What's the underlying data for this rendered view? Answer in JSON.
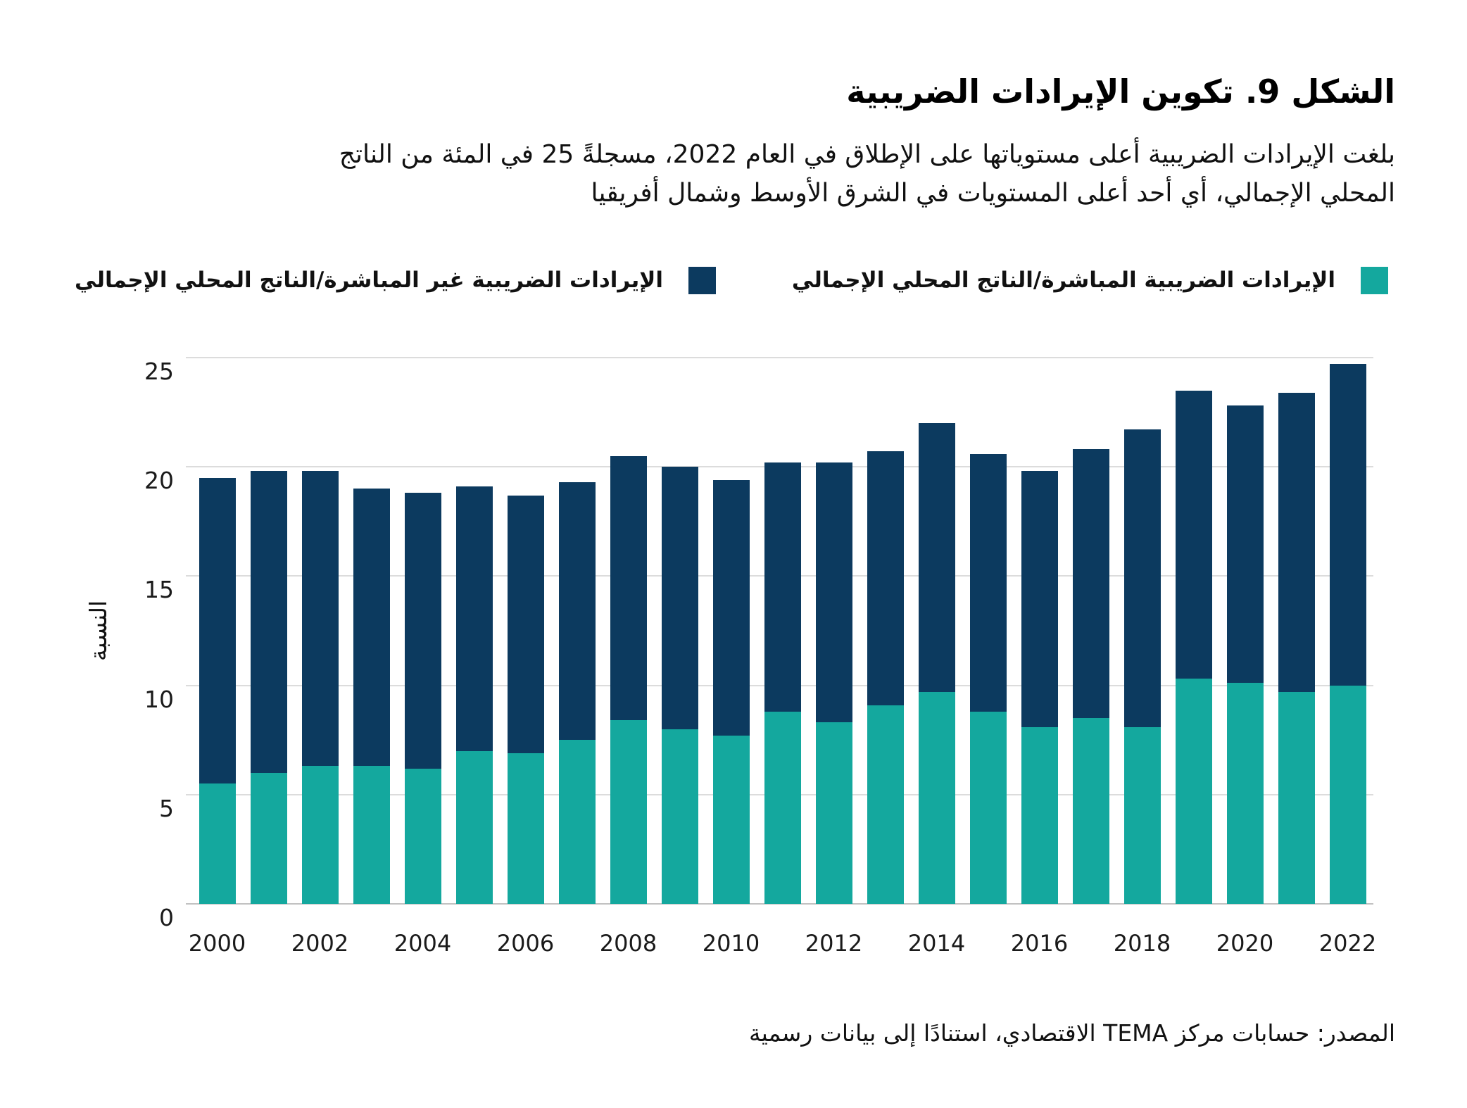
{
  "title": "الشكل 9. تكوين الإيرادات الضريبية",
  "subtitle_line1": "بلغت الإيرادات الضريبية أعلى مستوياتها على الإطلاق في العام 2022، مسجلةً 25 في المئة من الناتج",
  "subtitle_line2": "المحلي الإجمالي، أي أحد أعلى المستويات في الشرق الأوسط وشمال أفريقيا",
  "legend": {
    "direct_label": "الإيرادات الضريبية المباشرة/الناتج المحلي الإجمالي",
    "indirect_label": "الإيرادات الضريبية غير المباشرة/الناتج المحلي الإجمالي"
  },
  "source": "المصدر: حسابات مركز TEMA الاقتصادي، استنادًا إلى بيانات رسمية",
  "colors": {
    "direct": "#14A89E",
    "indirect": "#0C3A5F",
    "grid": "#DCDCDC",
    "axis": "#C2C2C2",
    "text": "#111111"
  },
  "chart_data": {
    "type": "bar",
    "stacked": true,
    "ylabel": "النسبة",
    "xlabel": "",
    "ylim": [
      0,
      25
    ],
    "yticks": [
      0,
      5,
      10,
      15,
      20,
      25
    ],
    "grid": true,
    "legend_position": "top",
    "categories": [
      2000,
      2001,
      2002,
      2003,
      2004,
      2005,
      2006,
      2007,
      2008,
      2009,
      2010,
      2011,
      2012,
      2013,
      2014,
      2015,
      2016,
      2017,
      2018,
      2019,
      2020,
      2021,
      2022
    ],
    "xtick_labels": [
      2000,
      2002,
      2004,
      2006,
      2008,
      2010,
      2012,
      2014,
      2016,
      2018,
      2020,
      2022
    ],
    "series": [
      {
        "name": "الإيرادات الضريبية المباشرة/الناتج المحلي الإجمالي",
        "color": "#14A89E",
        "values": [
          5.5,
          6.0,
          6.3,
          6.3,
          6.2,
          7.0,
          6.9,
          7.5,
          8.4,
          8.0,
          7.7,
          8.8,
          8.3,
          9.1,
          9.7,
          8.8,
          8.1,
          8.5,
          8.1,
          10.3,
          10.1,
          9.7,
          10.0
        ]
      },
      {
        "name": "الإيرادات الضريبية غير المباشرة/الناتج المحلي الإجمالي",
        "color": "#0C3A5F",
        "values": [
          14.0,
          13.8,
          13.5,
          12.7,
          12.6,
          12.1,
          11.8,
          11.8,
          12.1,
          12.0,
          11.7,
          11.4,
          11.9,
          11.6,
          12.3,
          11.8,
          11.7,
          12.3,
          13.6,
          13.2,
          12.7,
          13.7,
          14.7
        ]
      }
    ],
    "totals": [
      19.5,
      19.8,
      19.8,
      19.0,
      18.8,
      19.1,
      18.7,
      19.3,
      20.5,
      20.0,
      19.4,
      20.2,
      20.2,
      20.7,
      22.0,
      20.6,
      19.8,
      20.8,
      21.7,
      23.5,
      22.8,
      23.4,
      24.7
    ]
  }
}
